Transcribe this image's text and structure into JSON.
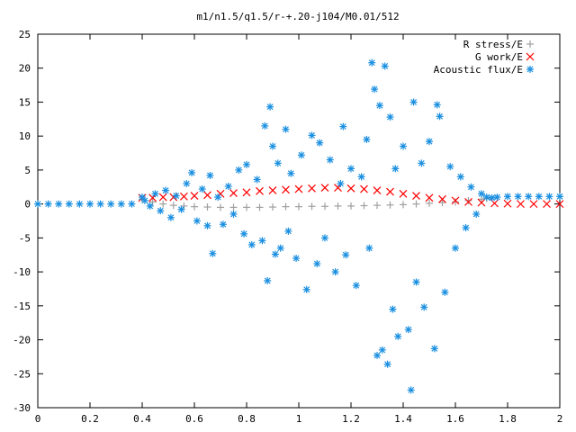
{
  "chart_data": {
    "type": "scatter",
    "title": "m1/n1.5/q1.5/r-+.20-j104/M0.01/512",
    "xlim": [
      0,
      2
    ],
    "ylim": [
      -30,
      25
    ],
    "x_ticks": [
      "0",
      "0.2",
      "0.4",
      "0.6",
      "0.8",
      "1",
      "1.2",
      "1.4",
      "1.6",
      "1.8",
      "2"
    ],
    "x_tick_values": [
      0,
      0.2,
      0.4,
      0.6,
      0.8,
      1.0,
      1.2,
      1.4,
      1.6,
      1.8,
      2.0
    ],
    "y_ticks": [
      "-30",
      "-25",
      "-20",
      "-15",
      "-10",
      "-5",
      "0",
      "5",
      "10",
      "15",
      "20",
      "25"
    ],
    "y_tick_values": [
      -30,
      -25,
      -20,
      -15,
      -10,
      -5,
      0,
      5,
      10,
      15,
      20,
      25
    ],
    "grid": false,
    "legend_position": "top-right",
    "series": [
      {
        "name": "R stress/E",
        "marker": "plus",
        "color": "#a0a0a0",
        "points": [
          [
            0.4,
            0.7
          ],
          [
            0.44,
            0.3
          ],
          [
            0.48,
            0.0
          ],
          [
            0.52,
            -0.2
          ],
          [
            0.56,
            -0.3
          ],
          [
            0.6,
            -0.4
          ],
          [
            0.65,
            -0.45
          ],
          [
            0.7,
            -0.5
          ],
          [
            0.75,
            -0.5
          ],
          [
            0.8,
            -0.5
          ],
          [
            0.85,
            -0.5
          ],
          [
            0.9,
            -0.45
          ],
          [
            0.95,
            -0.4
          ],
          [
            1.0,
            -0.4
          ],
          [
            1.05,
            -0.35
          ],
          [
            1.1,
            -0.35
          ],
          [
            1.15,
            -0.3
          ],
          [
            1.2,
            -0.3
          ],
          [
            1.25,
            -0.25
          ],
          [
            1.3,
            -0.2
          ],
          [
            1.35,
            -0.15
          ],
          [
            1.4,
            -0.1
          ],
          [
            1.45,
            0.0
          ],
          [
            1.5,
            0.1
          ],
          [
            1.55,
            0.2
          ],
          [
            1.6,
            0.3
          ],
          [
            1.65,
            0.5
          ],
          [
            1.7,
            0.7
          ],
          [
            1.72,
            0.8
          ]
        ]
      },
      {
        "name": "G work/E",
        "marker": "cross",
        "color": "#ff0000",
        "points": [
          [
            0.4,
            0.9
          ],
          [
            0.44,
            0.9
          ],
          [
            0.48,
            1.0
          ],
          [
            0.52,
            1.0
          ],
          [
            0.56,
            1.1
          ],
          [
            0.6,
            1.2
          ],
          [
            0.65,
            1.3
          ],
          [
            0.7,
            1.5
          ],
          [
            0.75,
            1.6
          ],
          [
            0.8,
            1.7
          ],
          [
            0.85,
            1.9
          ],
          [
            0.9,
            2.0
          ],
          [
            0.95,
            2.1
          ],
          [
            1.0,
            2.2
          ],
          [
            1.05,
            2.3
          ],
          [
            1.1,
            2.4
          ],
          [
            1.15,
            2.4
          ],
          [
            1.2,
            2.3
          ],
          [
            1.25,
            2.2
          ],
          [
            1.3,
            2.0
          ],
          [
            1.35,
            1.8
          ],
          [
            1.4,
            1.5
          ],
          [
            1.45,
            1.2
          ],
          [
            1.5,
            0.9
          ],
          [
            1.55,
            0.7
          ],
          [
            1.6,
            0.5
          ],
          [
            1.65,
            0.3
          ],
          [
            1.7,
            0.2
          ],
          [
            1.75,
            0.1
          ],
          [
            1.8,
            0.05
          ],
          [
            1.85,
            0.0
          ],
          [
            1.9,
            0.0
          ],
          [
            1.95,
            0.0
          ],
          [
            2.0,
            0.0
          ]
        ]
      },
      {
        "name": "Acoustic flux/E",
        "marker": "star",
        "color": "#1a8fe0",
        "points": [
          [
            0.0,
            0.0
          ],
          [
            0.04,
            0.0
          ],
          [
            0.08,
            0.0
          ],
          [
            0.12,
            0.0
          ],
          [
            0.16,
            0.0
          ],
          [
            0.2,
            0.0
          ],
          [
            0.24,
            0.0
          ],
          [
            0.28,
            0.0
          ],
          [
            0.32,
            0.0
          ],
          [
            0.36,
            0.0
          ],
          [
            0.4,
            1.0
          ],
          [
            0.41,
            0.5
          ],
          [
            0.43,
            -0.3
          ],
          [
            0.45,
            1.5
          ],
          [
            0.47,
            -1.0
          ],
          [
            0.49,
            2.0
          ],
          [
            0.51,
            -2.0
          ],
          [
            0.53,
            1.2
          ],
          [
            0.55,
            -0.8
          ],
          [
            0.57,
            3.0
          ],
          [
            0.59,
            4.6
          ],
          [
            0.61,
            -2.5
          ],
          [
            0.63,
            2.2
          ],
          [
            0.65,
            -3.2
          ],
          [
            0.66,
            4.2
          ],
          [
            0.67,
            -7.3
          ],
          [
            0.69,
            1.0
          ],
          [
            0.71,
            -3.0
          ],
          [
            0.73,
            2.6
          ],
          [
            0.75,
            -1.5
          ],
          [
            0.77,
            5.0
          ],
          [
            0.79,
            -4.4
          ],
          [
            0.8,
            5.8
          ],
          [
            0.82,
            -6.0
          ],
          [
            0.84,
            3.6
          ],
          [
            0.86,
            -5.4
          ],
          [
            0.87,
            11.5
          ],
          [
            0.88,
            -11.3
          ],
          [
            0.89,
            14.3
          ],
          [
            0.9,
            8.5
          ],
          [
            0.91,
            -7.4
          ],
          [
            0.92,
            6.0
          ],
          [
            0.93,
            -6.5
          ],
          [
            0.95,
            11.0
          ],
          [
            0.96,
            -4.0
          ],
          [
            0.97,
            4.5
          ],
          [
            0.99,
            -8.0
          ],
          [
            1.01,
            7.2
          ],
          [
            1.03,
            -12.6
          ],
          [
            1.05,
            10.1
          ],
          [
            1.07,
            -8.8
          ],
          [
            1.08,
            9.0
          ],
          [
            1.1,
            -5.0
          ],
          [
            1.12,
            6.5
          ],
          [
            1.14,
            -10.0
          ],
          [
            1.16,
            3.0
          ],
          [
            1.17,
            11.4
          ],
          [
            1.18,
            -7.5
          ],
          [
            1.2,
            5.2
          ],
          [
            1.22,
            -12.0
          ],
          [
            1.24,
            4.0
          ],
          [
            1.26,
            9.5
          ],
          [
            1.27,
            -6.5
          ],
          [
            1.28,
            20.8
          ],
          [
            1.29,
            16.9
          ],
          [
            1.3,
            -22.3
          ],
          [
            1.31,
            14.5
          ],
          [
            1.32,
            -21.5
          ],
          [
            1.33,
            20.3
          ],
          [
            1.34,
            -23.6
          ],
          [
            1.35,
            12.8
          ],
          [
            1.36,
            -15.5
          ],
          [
            1.37,
            5.2
          ],
          [
            1.38,
            -19.5
          ],
          [
            1.4,
            8.5
          ],
          [
            1.42,
            -18.5
          ],
          [
            1.43,
            -27.4
          ],
          [
            1.44,
            15.0
          ],
          [
            1.45,
            -11.5
          ],
          [
            1.47,
            6.0
          ],
          [
            1.48,
            -15.2
          ],
          [
            1.5,
            9.2
          ],
          [
            1.52,
            -21.3
          ],
          [
            1.53,
            14.6
          ],
          [
            1.54,
            12.9
          ],
          [
            1.56,
            -13.0
          ],
          [
            1.58,
            5.5
          ],
          [
            1.6,
            -6.5
          ],
          [
            1.62,
            4.0
          ],
          [
            1.64,
            -3.5
          ],
          [
            1.66,
            2.5
          ],
          [
            1.68,
            -1.5
          ],
          [
            1.7,
            1.5
          ],
          [
            1.72,
            1.0
          ],
          [
            1.74,
            0.9
          ],
          [
            1.76,
            1.0
          ],
          [
            1.8,
            1.1
          ],
          [
            1.84,
            1.1
          ],
          [
            1.88,
            1.1
          ],
          [
            1.92,
            1.1
          ],
          [
            1.96,
            1.1
          ],
          [
            2.0,
            1.1
          ]
        ]
      }
    ]
  }
}
